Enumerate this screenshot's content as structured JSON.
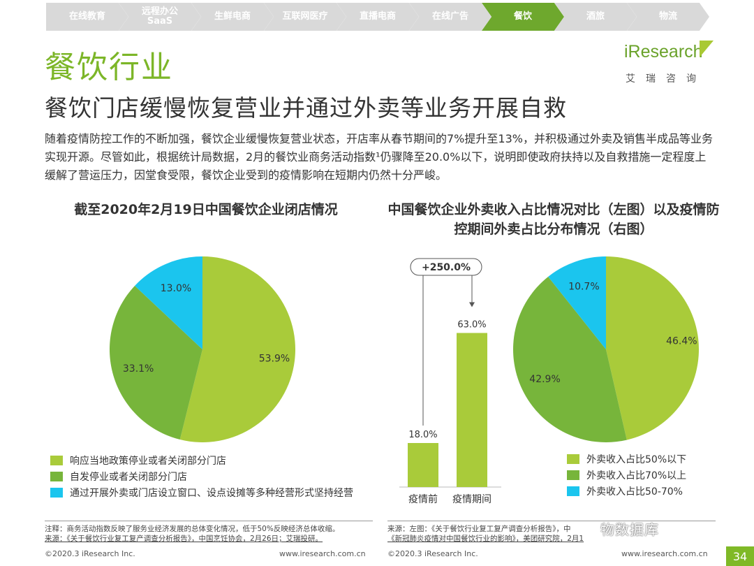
{
  "nav": {
    "items": [
      {
        "label": "在线教育",
        "active": false
      },
      {
        "label": "远程办公\nSaaS",
        "active": false
      },
      {
        "label": "生鲜电商",
        "active": false
      },
      {
        "label": "互联网医疗",
        "active": false
      },
      {
        "label": "直播电商",
        "active": false
      },
      {
        "label": "在线广告",
        "active": false
      },
      {
        "label": "餐饮",
        "active": true
      },
      {
        "label": "酒旅",
        "active": false
      },
      {
        "label": "物流",
        "active": false
      }
    ]
  },
  "header": {
    "section_title": "餐饮行业",
    "subtitle": "餐饮门店缓慢恢复营业并通过外卖等业务开展自救",
    "body_text": "随着疫情防控工作的不断加强，餐饮企业缓慢恢复营业状态，开店率从春节期间的7%提升至13%，并积极通过外卖及销售半成品等业务实现开源。尽管如此，根据统计局数据，2月的餐饮业商务活动指数¹仍骤降至20.0%以下，说明即使政府扶持以及自救措施一定程度上缓解了营运压力，因堂食受限，餐饮企业受到的疫情影响在短期内仍然十分严峻。"
  },
  "logo": {
    "name": "iResearch",
    "sub": "艾瑞咨询"
  },
  "colors": {
    "accent": "#7cb628",
    "light_green": "#a9cb3a",
    "mid_green": "#77b53b",
    "cyan": "#1bc5ee",
    "nav_inactive": "#d9d9d9",
    "nav_active": "#6ea82d"
  },
  "chart_data": [
    {
      "type": "pie",
      "title": "截至2020年2月19日中国餐饮企业闭店情况",
      "slices": [
        {
          "label": "响应当地政策停业或者关闭部分门店",
          "value": 53.9,
          "display": "53.9%",
          "color": "#a9cb3a"
        },
        {
          "label": "自发停业或者关闭部分门店",
          "value": 33.1,
          "display": "33.1%",
          "color": "#77b53b"
        },
        {
          "label": "通过开展外卖或门店设立窗口、设点设摊等多种经营形式坚持经营",
          "value": 13.0,
          "display": "13.0%",
          "color": "#1bc5ee"
        }
      ],
      "legend_position": "bottom"
    },
    {
      "type": "bar",
      "title": "中国餐饮企业外卖收入占比情况对比（左图）以及疫情防控期间外卖占比分布情况（右图）",
      "categories": [
        "疫情前",
        "疫情期间"
      ],
      "values": [
        18.0,
        63.0
      ],
      "value_labels": [
        "18.0%",
        "63.0%"
      ],
      "annotation": "+250.0%",
      "color": "#a9cb3a"
    },
    {
      "type": "pie",
      "slices": [
        {
          "label": "外卖收入占比50%以下",
          "value": 46.4,
          "display": "46.4%",
          "color": "#a9cb3a"
        },
        {
          "label": "外卖收入占比70%以上",
          "value": 42.9,
          "display": "42.9%",
          "color": "#77b53b"
        },
        {
          "label": "外卖收入占比50-70%",
          "value": 10.7,
          "display": "10.7%",
          "color": "#1bc5ee"
        }
      ],
      "legend_position": "bottom-right"
    }
  ],
  "footer": {
    "note_left_1": "注释：商务活动指数反映了服务业经济发展的总体变化情况，低于50%反映经济总体收缩。",
    "note_left_2": "来源：《关于餐饮行业复工复产调查分析报告》，中国烹饪协会，2月26日；艾瑞投研。",
    "note_right_1": "来源：左图：《关于餐饮行业复工复产调查分析报告》，中",
    "note_right_2": "《新冠肺炎疫情对中国餐饮行业的影响》，美团研究院，2月1",
    "copyright_left": "©2020.3 iResearch Inc.",
    "site_left": "www.iresearch.com.cn",
    "copyright_right": "©2020.3 iResearch Inc.",
    "site_right": "www.iresearch.com.cn",
    "page_number": "34",
    "watermark": "物数据库"
  }
}
